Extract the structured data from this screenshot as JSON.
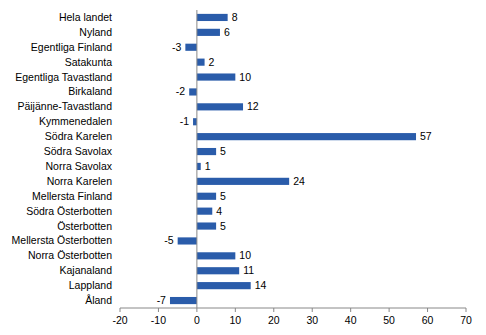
{
  "chart_data": {
    "type": "bar",
    "orientation": "horizontal",
    "categories": [
      "Hela landet",
      "Nyland",
      "Egentliga Finland",
      "Satakunta",
      "Egentliga Tavastland",
      "Birkaland",
      "Päijänne-Tavastland",
      "Kymmenedalen",
      "Södra Karelen",
      "Södra Savolax",
      "Norra Savolax",
      "Norra Karelen",
      "Mellersta Finland",
      "Södra Österbotten",
      "Österbotten",
      "Mellersta Österbotten",
      "Norra Österbotten",
      "Kajanaland",
      "Lappland",
      "Åland"
    ],
    "values": [
      8,
      6,
      -3,
      2,
      10,
      -2,
      12,
      -1,
      57,
      5,
      1,
      24,
      5,
      4,
      5,
      -5,
      10,
      11,
      14,
      -7
    ],
    "color": "#2a5caa",
    "xlim": [
      -20,
      70
    ],
    "xticks": [
      -20,
      -10,
      0,
      10,
      20,
      30,
      40,
      50,
      60,
      70
    ],
    "grid": false,
    "data_labels": true
  }
}
